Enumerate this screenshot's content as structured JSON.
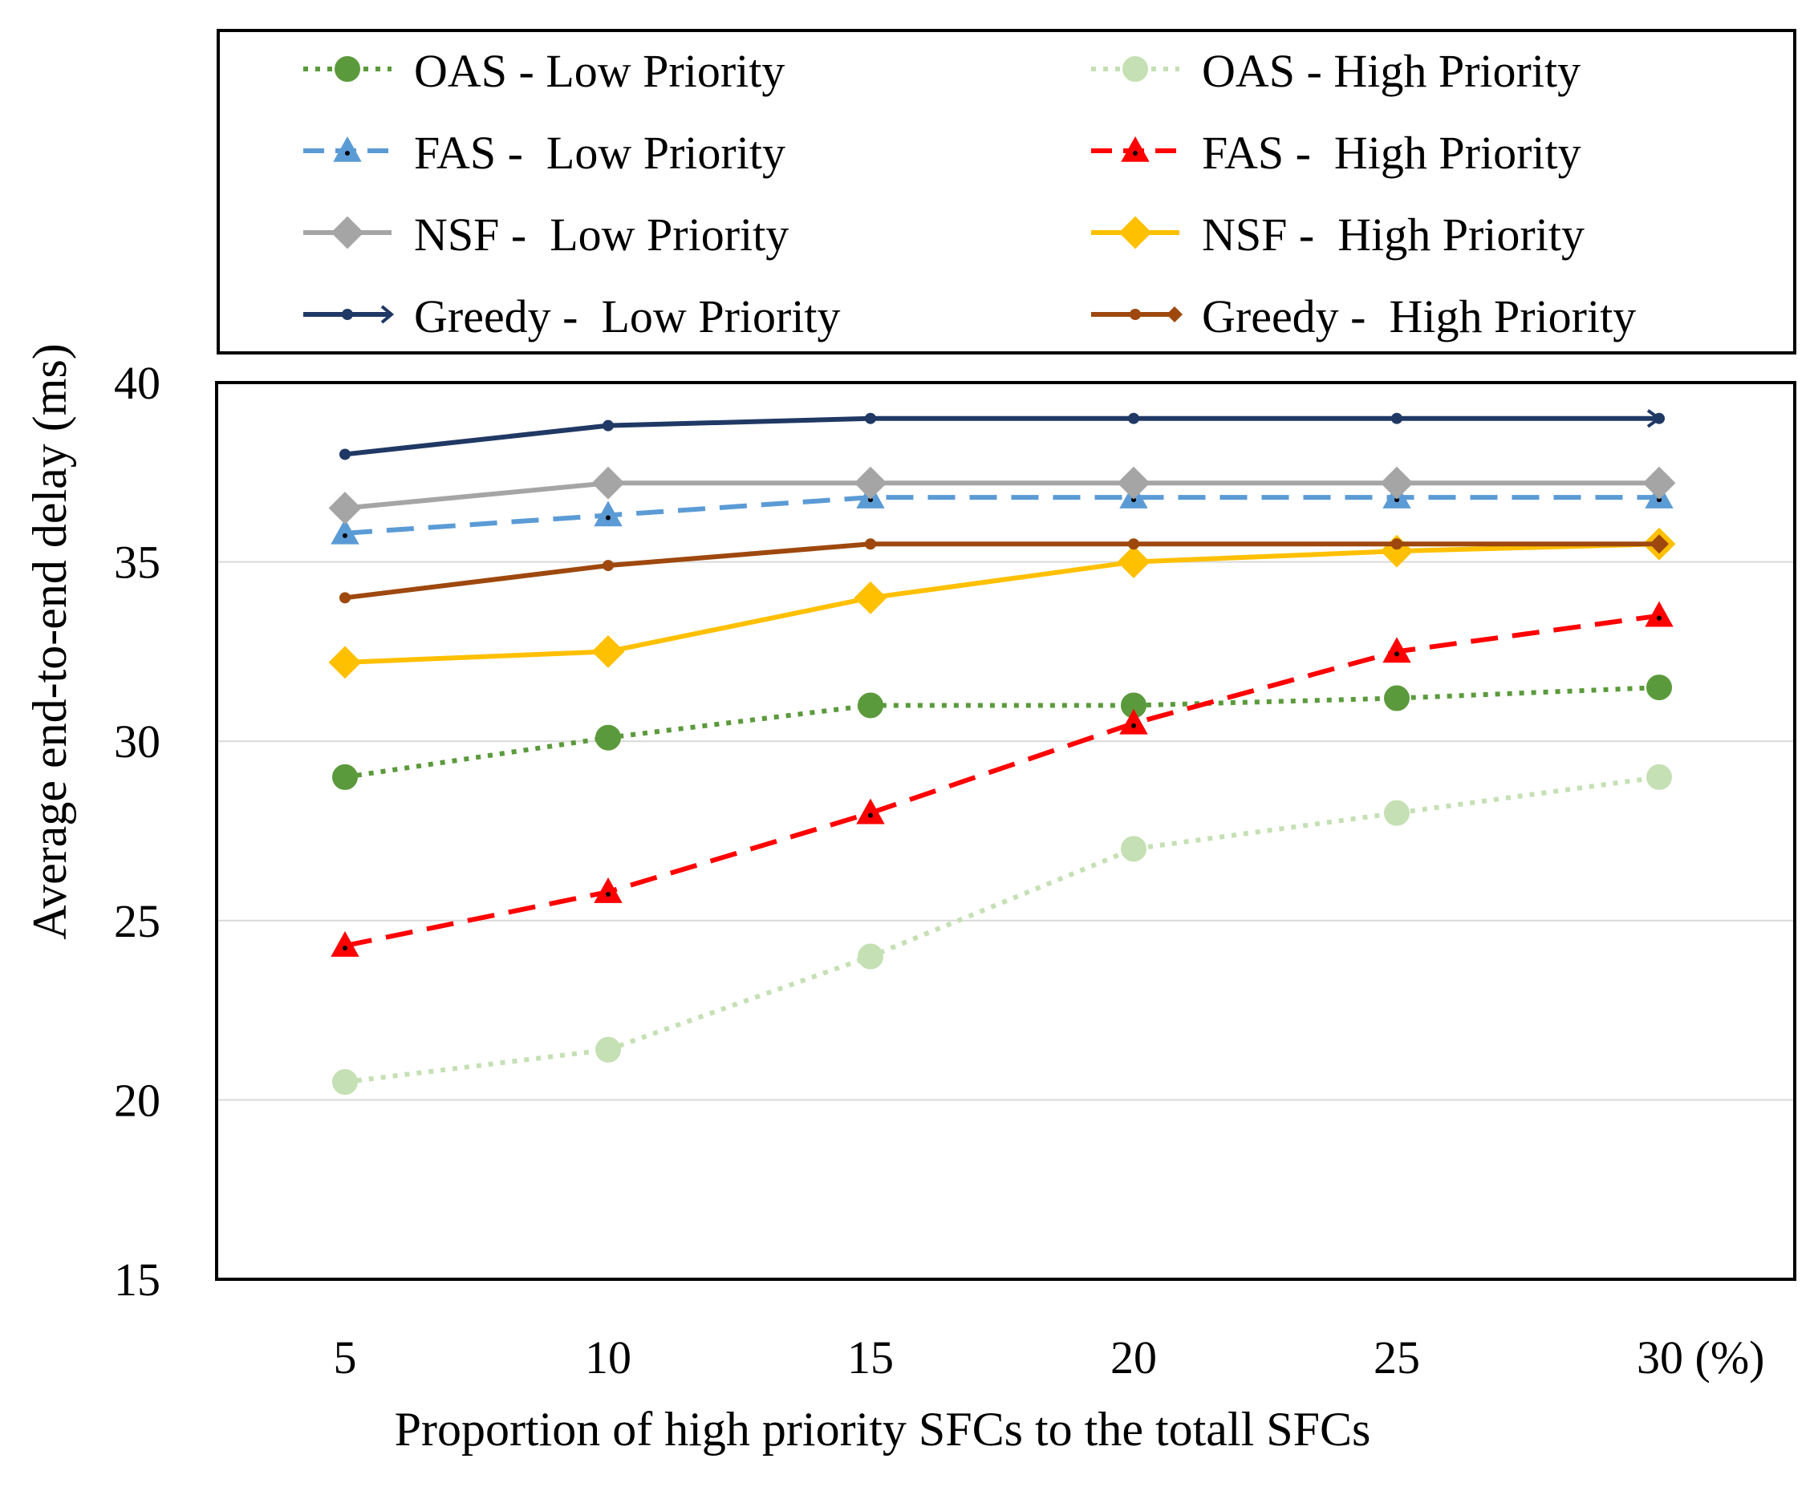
{
  "chart_data": {
    "type": "line",
    "title": "",
    "xlabel": "Proportion of high priority SFCs to the totall SFCs",
    "ylabel": "Average end-to-end delay (ms)",
    "x": [
      5,
      10,
      15,
      20,
      25,
      30
    ],
    "x_tick_labels": [
      "5",
      "10",
      "15",
      "20",
      "25",
      "30 (%)"
    ],
    "ylim": [
      15,
      40
    ],
    "y_ticks": [
      15,
      20,
      25,
      30,
      35,
      40
    ],
    "grid": true,
    "legend_position": "top",
    "series": [
      {
        "name": "OAS - Low Priority",
        "color": "#5b9a3c",
        "dash": "dot",
        "marker": "circle",
        "values": [
          29.0,
          30.1,
          31.0,
          31.0,
          31.2,
          31.5
        ]
      },
      {
        "name": "OAS - High Priority",
        "color": "#c5e0b4",
        "dash": "dot",
        "marker": "circle",
        "values": [
          20.5,
          21.4,
          24.0,
          27.0,
          28.0,
          29.0
        ]
      },
      {
        "name": "FAS -  Low Priority",
        "color": "#5b9bd5",
        "dash": "dash",
        "marker": "triangle",
        "values": [
          35.8,
          36.3,
          36.8,
          36.8,
          36.8,
          36.8
        ]
      },
      {
        "name": "FAS -  High Priority",
        "color": "#ff0000",
        "dash": "dash",
        "marker": "triangle",
        "values": [
          24.3,
          25.8,
          28.0,
          30.5,
          32.5,
          33.5
        ]
      },
      {
        "name": "NSF -  Low Priority",
        "color": "#a5a5a5",
        "dash": "solid",
        "marker": "diamond",
        "values": [
          36.5,
          37.2,
          37.2,
          37.2,
          37.2,
          37.2
        ]
      },
      {
        "name": "NSF -  High Priority",
        "color": "#ffc000",
        "dash": "solid",
        "marker": "diamond",
        "values": [
          32.2,
          32.5,
          34.0,
          35.0,
          35.3,
          35.5
        ]
      },
      {
        "name": "Greedy -  Low Priority",
        "color": "#203864",
        "dash": "solid",
        "marker": "dot-arrow",
        "values": [
          38.0,
          38.8,
          39.0,
          39.0,
          39.0,
          39.0
        ]
      },
      {
        "name": "Greedy -  High Priority",
        "color": "#9e480e",
        "dash": "solid",
        "marker": "dot-diamond",
        "values": [
          34.0,
          34.9,
          35.5,
          35.5,
          35.5,
          35.5
        ]
      }
    ]
  }
}
